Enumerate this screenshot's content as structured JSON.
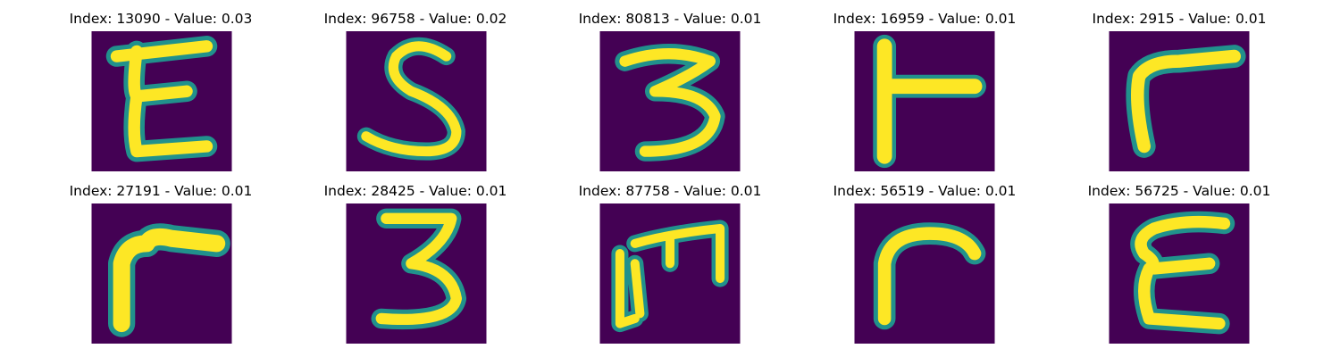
{
  "colors": {
    "background_cell": "#440154",
    "stroke_edge": "#21918c",
    "stroke_mid": "#5ec962",
    "stroke_core": "#fde725"
  },
  "panels": [
    {
      "title": "Index: 13090 - Value: 0.03",
      "glyph": "E"
    },
    {
      "title": "Index: 96758 - Value: 0.02",
      "glyph": "S"
    },
    {
      "title": "Index: 80813 - Value: 0.01",
      "glyph": "3"
    },
    {
      "title": "Index: 16959 - Value: 0.01",
      "glyph": "T-rotated"
    },
    {
      "title": "Index: 2915 - Value: 0.01",
      "glyph": "r"
    },
    {
      "title": "Index: 27191 - Value: 0.01",
      "glyph": "r"
    },
    {
      "title": "Index: 28425 - Value: 0.01",
      "glyph": "3"
    },
    {
      "title": "Index: 87758 - Value: 0.01",
      "glyph": "m"
    },
    {
      "title": "Index: 56519 - Value: 0.01",
      "glyph": "r"
    },
    {
      "title": "Index: 56725 - Value: 0.01",
      "glyph": "E"
    }
  ]
}
